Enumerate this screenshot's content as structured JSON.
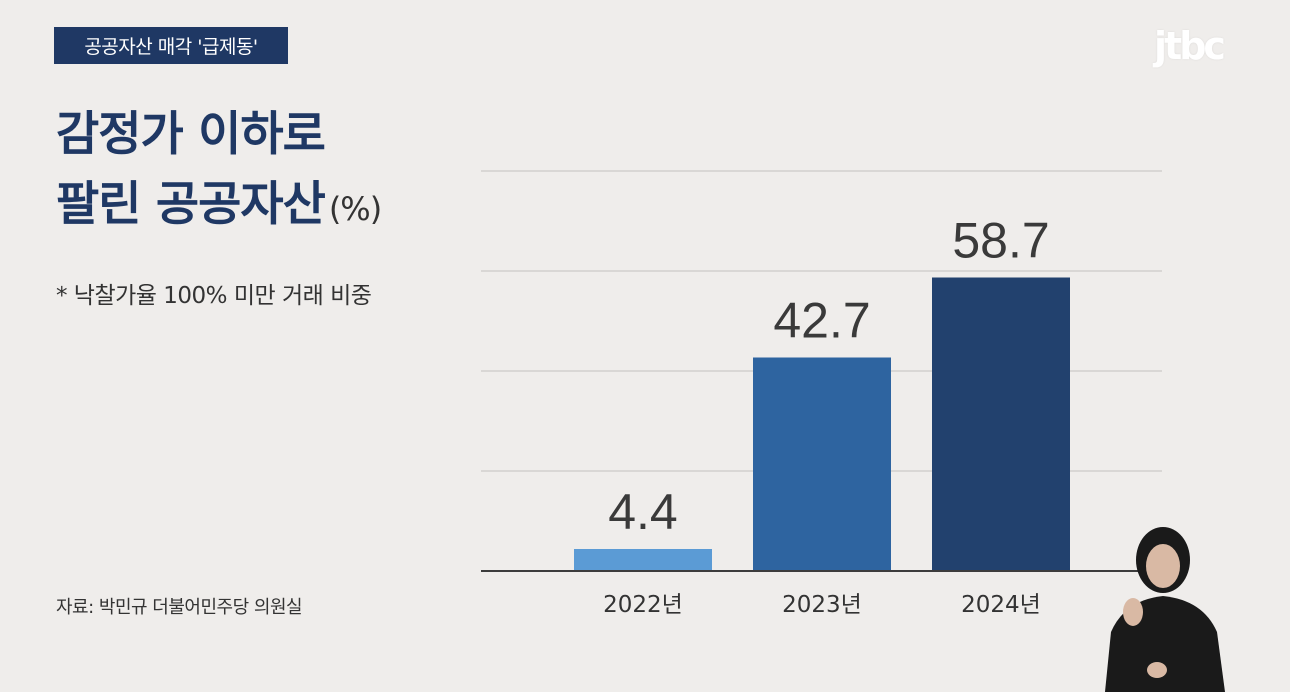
{
  "header": {
    "tag": "공공자산 매각 '급제동'",
    "logo": "jtbc"
  },
  "title": {
    "line1": "감정가 이하로",
    "line2": "팔린 공공자산",
    "unit": "(%)"
  },
  "note": "* 낙찰가율 100% 미만 거래 비중",
  "source": "자료: 박민규 더불어민주당 의원실",
  "colors": {
    "bar_2022": "#5b9bd5",
    "bar_2023": "#2e64a0",
    "bar_2024": "#22416e",
    "title": "#1f3864",
    "background": "#efedeb"
  },
  "chart_data": {
    "type": "bar",
    "categories": [
      "2022년",
      "2023년",
      "2024년"
    ],
    "values": [
      4.4,
      42.7,
      58.7
    ],
    "labels": [
      "4.4",
      "42.7",
      "58.7"
    ],
    "ylim": [
      0,
      80
    ],
    "grid": true
  }
}
